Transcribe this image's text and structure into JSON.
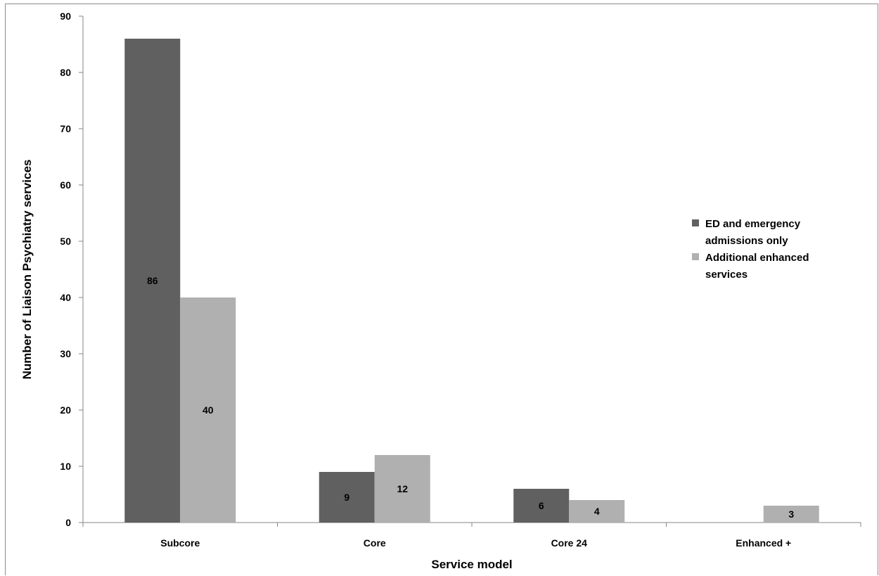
{
  "chart_data": {
    "type": "bar",
    "categories": [
      "Subcore",
      "Core",
      "Core 24",
      "Enhanced +"
    ],
    "series": [
      {
        "name": "ED and emergency admissions only",
        "values": [
          86,
          9,
          6,
          0
        ],
        "labels": [
          "86",
          "9",
          "6",
          ""
        ],
        "color": "#606060"
      },
      {
        "name": "Additional enhanced services",
        "values": [
          40,
          12,
          4,
          3
        ],
        "labels": [
          "40",
          "12",
          "4",
          "3"
        ],
        "color": "#b0b0b0"
      }
    ],
    "legend_lines": [
      [
        "ED and emergency",
        "admissions only"
      ],
      [
        "Additional enhanced",
        "services"
      ]
    ],
    "xlabel": "Service model",
    "ylabel": "Number of Liaison Psychiatry services",
    "ylim": [
      0,
      90
    ],
    "yticks": [
      0,
      10,
      20,
      30,
      40,
      50,
      60,
      70,
      80,
      90
    ],
    "grid": false,
    "legend_position": "right"
  }
}
